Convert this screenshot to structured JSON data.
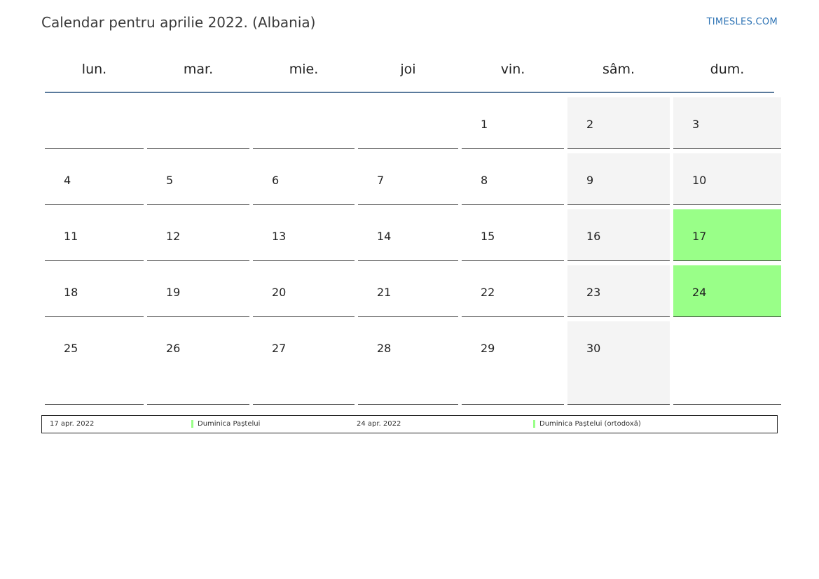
{
  "header": {
    "title": "Calendar pentru aprilie 2022. (Albania)",
    "brand": "TIMESLES.COM"
  },
  "calendar": {
    "weekdays": [
      "lun.",
      "mar.",
      "mie.",
      "joi",
      "vin.",
      "sâm.",
      "dum."
    ],
    "weeks": [
      [
        "",
        "",
        "",
        "",
        "1",
        "2",
        "3"
      ],
      [
        "4",
        "5",
        "6",
        "7",
        "8",
        "9",
        "10"
      ],
      [
        "11",
        "12",
        "13",
        "14",
        "15",
        "16",
        "17"
      ],
      [
        "18",
        "19",
        "20",
        "21",
        "22",
        "23",
        "24"
      ],
      [
        "25",
        "26",
        "27",
        "28",
        "29",
        "30",
        ""
      ]
    ],
    "holiday_days": [
      "17",
      "24"
    ],
    "holiday_color": "#99ff88",
    "weekend_color": "#f4f4f4"
  },
  "legend": {
    "items": [
      {
        "date": "17 apr. 2022",
        "name": "Duminica Paștelui"
      },
      {
        "date": "24 apr. 2022",
        "name": "Duminica Paștelui (ortodoxă)"
      }
    ]
  }
}
